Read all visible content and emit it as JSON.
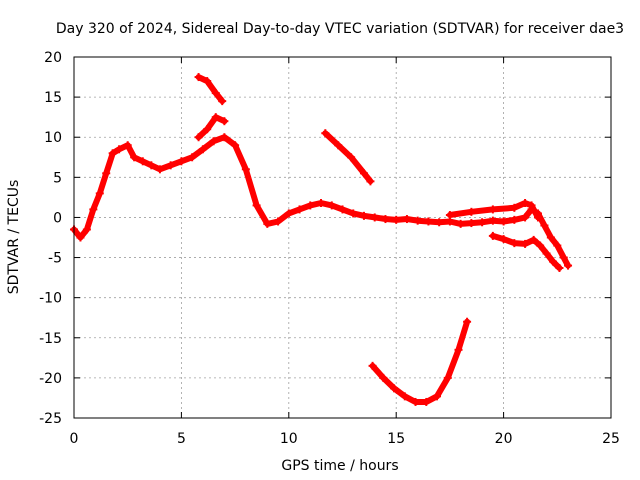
{
  "chart_data": {
    "type": "scatter",
    "title": "Day 320 of 2024, Sidereal Day-to-day VTEC variation (SDTVAR) for receiver dae3",
    "xlabel": "GPS time / hours",
    "ylabel": "SDTVAR / TECUs",
    "xlim": [
      0,
      25
    ],
    "ylim": [
      -25,
      20
    ],
    "xticks": [
      0,
      5,
      10,
      15,
      20,
      25
    ],
    "yticks": [
      -25,
      -20,
      -15,
      -10,
      -5,
      0,
      5,
      10,
      15,
      20
    ],
    "grid": true,
    "legend": "none",
    "marker_color": "#ff0000",
    "series": [
      {
        "name": "main-trace",
        "points": [
          [
            0.0,
            -1.5
          ],
          [
            0.3,
            -2.5
          ],
          [
            0.6,
            -1.5
          ],
          [
            0.9,
            1.0
          ],
          [
            1.2,
            3.0
          ],
          [
            1.5,
            5.5
          ],
          [
            1.8,
            8.0
          ],
          [
            2.1,
            8.5
          ],
          [
            2.5,
            9.0
          ],
          [
            2.8,
            7.5
          ],
          [
            3.2,
            7.0
          ],
          [
            3.6,
            6.5
          ],
          [
            4.0,
            6.0
          ],
          [
            4.5,
            6.5
          ],
          [
            5.0,
            7.0
          ],
          [
            5.5,
            7.5
          ],
          [
            6.0,
            8.5
          ],
          [
            6.5,
            9.5
          ],
          [
            7.0,
            10.0
          ],
          [
            7.5,
            9.0
          ],
          [
            8.0,
            6.0
          ],
          [
            8.5,
            1.5
          ],
          [
            9.0,
            -0.8
          ],
          [
            9.5,
            -0.5
          ],
          [
            10.0,
            0.5
          ],
          [
            10.5,
            1.0
          ],
          [
            11.0,
            1.5
          ],
          [
            11.5,
            1.8
          ],
          [
            12.0,
            1.5
          ],
          [
            12.5,
            1.0
          ],
          [
            13.0,
            0.5
          ],
          [
            13.5,
            0.2
          ],
          [
            14.0,
            0.0
          ],
          [
            14.5,
            -0.2
          ],
          [
            15.0,
            -0.3
          ],
          [
            15.5,
            -0.2
          ],
          [
            16.0,
            -0.4
          ],
          [
            16.5,
            -0.5
          ],
          [
            17.0,
            -0.6
          ],
          [
            17.5,
            -0.5
          ],
          [
            18.0,
            -0.8
          ],
          [
            18.5,
            -0.7
          ],
          [
            19.0,
            -0.6
          ],
          [
            19.5,
            -0.4
          ],
          [
            20.0,
            -0.5
          ],
          [
            20.5,
            -0.3
          ],
          [
            21.0,
            0.0
          ],
          [
            21.3,
            1.0
          ],
          [
            21.6,
            0.5
          ],
          [
            21.9,
            -1.0
          ],
          [
            22.2,
            -2.5
          ],
          [
            22.5,
            -3.5
          ],
          [
            22.8,
            -5.0
          ],
          [
            23.0,
            -6.0
          ]
        ]
      },
      {
        "name": "upper-branch-evening",
        "points": [
          [
            17.5,
            0.3
          ],
          [
            18.5,
            0.7
          ],
          [
            19.5,
            1.0
          ],
          [
            20.5,
            1.2
          ],
          [
            21.0,
            1.8
          ],
          [
            21.3,
            1.5
          ],
          [
            21.6,
            0.0
          ]
        ]
      },
      {
        "name": "lower-branch-evening",
        "points": [
          [
            19.5,
            -2.3
          ],
          [
            20.0,
            -2.7
          ],
          [
            20.5,
            -3.2
          ],
          [
            21.0,
            -3.3
          ],
          [
            21.4,
            -2.8
          ],
          [
            21.7,
            -3.5
          ],
          [
            22.0,
            -4.5
          ],
          [
            22.3,
            -5.5
          ],
          [
            22.6,
            -6.3
          ]
        ]
      },
      {
        "name": "upper-branch-morning",
        "points": [
          [
            5.8,
            10.0
          ],
          [
            6.2,
            11.0
          ],
          [
            6.6,
            12.5
          ],
          [
            7.0,
            12.0
          ]
        ]
      },
      {
        "name": "spike-segment",
        "points": [
          [
            5.8,
            17.5
          ],
          [
            6.2,
            17.0
          ],
          [
            6.6,
            15.5
          ],
          [
            6.9,
            14.5
          ]
        ]
      },
      {
        "name": "descending-segment",
        "points": [
          [
            11.7,
            10.5
          ],
          [
            12.3,
            9.0
          ],
          [
            12.9,
            7.5
          ],
          [
            13.5,
            5.5
          ],
          [
            13.8,
            4.5
          ]
        ]
      },
      {
        "name": "negative-arc",
        "points": [
          [
            13.9,
            -18.5
          ],
          [
            14.4,
            -20.0
          ],
          [
            14.9,
            -21.3
          ],
          [
            15.4,
            -22.3
          ],
          [
            15.9,
            -23.0
          ],
          [
            16.4,
            -23.0
          ],
          [
            16.9,
            -22.3
          ],
          [
            17.4,
            -20.0
          ],
          [
            17.9,
            -16.5
          ],
          [
            18.3,
            -13.0
          ]
        ]
      }
    ]
  }
}
